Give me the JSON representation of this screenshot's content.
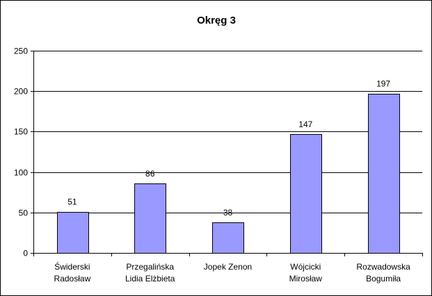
{
  "chart_data": {
    "type": "bar",
    "title": "Okręg 3",
    "categories": [
      [
        "Świderski",
        "Radosław"
      ],
      [
        "Przegalińska",
        "Lidia Elżbieta"
      ],
      [
        "Jopek Zenon"
      ],
      [
        "Wójcicki",
        "Mirosław"
      ],
      [
        "Rozwadowska",
        "Bogumiła"
      ]
    ],
    "values": [
      51,
      86,
      38,
      147,
      197
    ],
    "data_labels": [
      "51",
      "86",
      "38",
      "147",
      "197"
    ],
    "ylim": [
      0,
      250
    ],
    "yticks": [
      0,
      50,
      100,
      150,
      200,
      250
    ],
    "ytick_labels": [
      "0",
      "50",
      "100",
      "150",
      "200",
      "250"
    ],
    "xlabel": "",
    "ylabel": "",
    "grid": true,
    "legend": "none",
    "colors": {
      "bar_fill": "#9999ff",
      "bar_stroke": "#000000",
      "grid": "#000000",
      "background": "#ffffff"
    }
  }
}
